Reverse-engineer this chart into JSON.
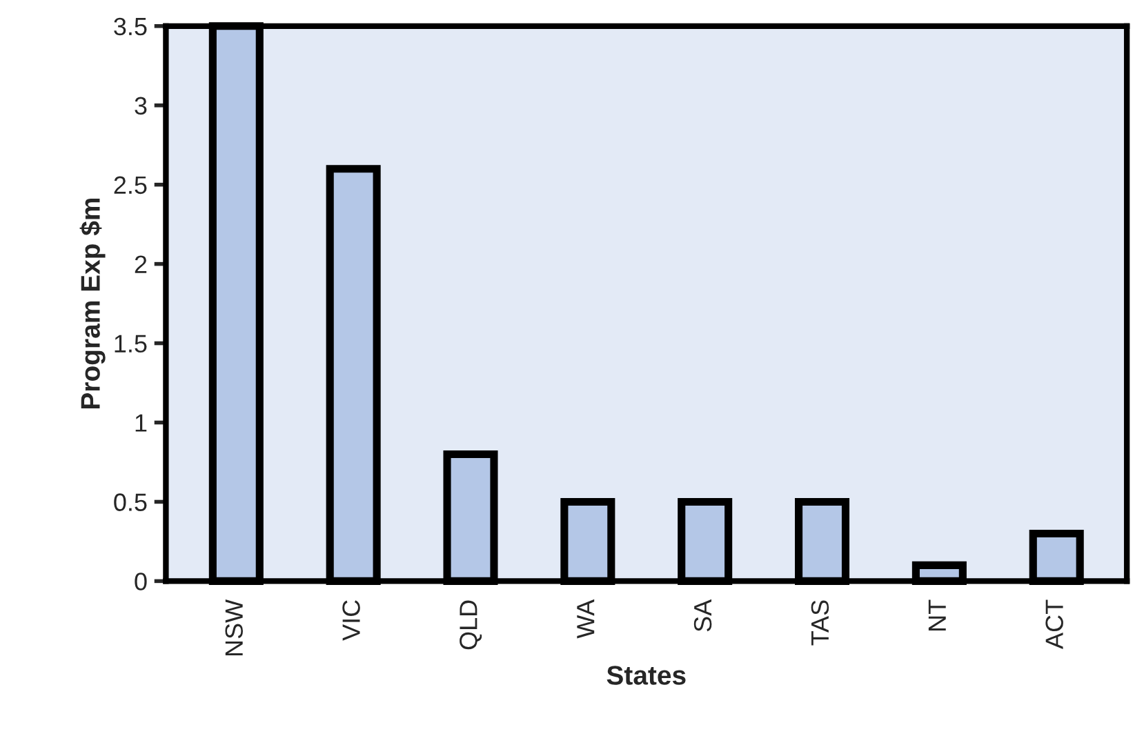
{
  "chart_data": {
    "type": "bar",
    "xlabel": "States",
    "ylabel": "Program Exp $m",
    "categories": [
      "NSW",
      "VIC",
      "QLD",
      "WA",
      "SA",
      "TAS",
      "NT",
      "ACT"
    ],
    "values": [
      3.5,
      2.6,
      0.8,
      0.5,
      0.5,
      0.5,
      0.1,
      0.3
    ],
    "color": "#b4c7e7",
    "ylim": [
      0,
      3.5
    ],
    "yticks": [
      0,
      0.5,
      1,
      1.5,
      2,
      2.5,
      3,
      3.5
    ],
    "grid": false,
    "legend": false
  }
}
